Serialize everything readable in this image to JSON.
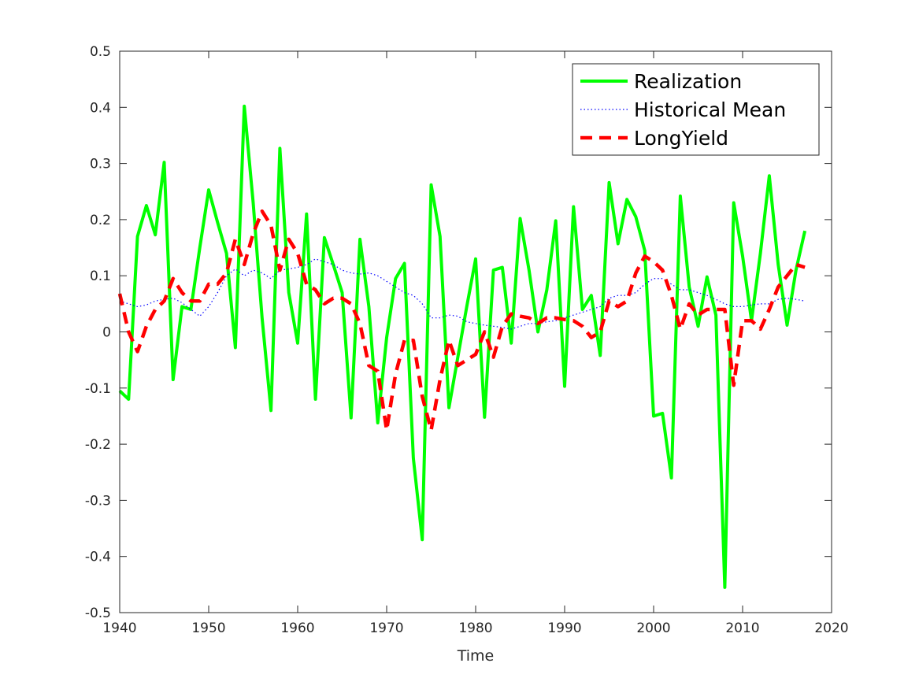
{
  "chart_data": {
    "type": "line",
    "title": "",
    "xlabel": "Time",
    "ylabel": "",
    "xlim": [
      1940,
      2020
    ],
    "ylim": [
      -0.5,
      0.5
    ],
    "xticks": [
      1940,
      1950,
      1960,
      1970,
      1980,
      1990,
      2000,
      2010,
      2020
    ],
    "yticks": [
      -0.5,
      -0.4,
      -0.3,
      -0.2,
      -0.1,
      0,
      0.1,
      0.2,
      0.3,
      0.4,
      0.5
    ],
    "xtick_labels": [
      "1940",
      "1950",
      "1960",
      "1970",
      "1980",
      "1990",
      "2000",
      "2010",
      "2020"
    ],
    "ytick_labels": [
      "-0.5",
      "-0.4",
      "-0.3",
      "-0.2",
      "-0.1",
      "0",
      "0.1",
      "0.2",
      "0.3",
      "0.4",
      "0.5"
    ],
    "legend_position": "top-right",
    "series": [
      {
        "name": "Realization",
        "color": "#00ff00",
        "style": "solid",
        "x": [
          1940,
          1941,
          1942,
          1943,
          1944,
          1945,
          1946,
          1947,
          1948,
          1949,
          1950,
          1951,
          1952,
          1953,
          1954,
          1955,
          1956,
          1957,
          1958,
          1959,
          1960,
          1961,
          1962,
          1963,
          1964,
          1965,
          1966,
          1967,
          1968,
          1969,
          1970,
          1971,
          1972,
          1973,
          1974,
          1975,
          1976,
          1977,
          1978,
          1979,
          1980,
          1981,
          1982,
          1983,
          1984,
          1985,
          1986,
          1987,
          1988,
          1989,
          1990,
          1991,
          1992,
          1993,
          1994,
          1995,
          1996,
          1997,
          1998,
          1999,
          2000,
          2001,
          2002,
          2003,
          2004,
          2005,
          2006,
          2007,
          2008,
          2009,
          2010,
          2011,
          2012,
          2013,
          2014,
          2015,
          2016,
          2017
        ],
        "values": [
          -0.105,
          -0.12,
          0.17,
          0.225,
          0.173,
          0.302,
          -0.085,
          0.045,
          0.04,
          0.15,
          0.253,
          0.195,
          0.14,
          -0.028,
          0.402,
          0.23,
          0.025,
          -0.14,
          0.327,
          0.07,
          -0.02,
          0.21,
          -0.12,
          0.168,
          0.12,
          0.07,
          -0.153,
          0.165,
          0.045,
          -0.162,
          -0.01,
          0.095,
          0.122,
          -0.225,
          -0.37,
          0.262,
          0.17,
          -0.135,
          -0.045,
          0.045,
          0.13,
          -0.152,
          0.11,
          0.115,
          -0.02,
          0.202,
          0.11,
          0.0,
          0.075,
          0.198,
          -0.097,
          0.223,
          0.04,
          0.065,
          -0.042,
          0.266,
          0.157,
          0.236,
          0.205,
          0.145,
          -0.15,
          -0.145,
          -0.26,
          0.242,
          0.08,
          0.01,
          0.098,
          0.03,
          -0.455,
          0.23,
          0.135,
          0.02,
          0.14,
          0.278,
          0.12,
          0.012,
          0.11,
          0.18
        ]
      },
      {
        "name": "Historical Mean",
        "color": "#0000ff",
        "style": "dotted",
        "x": [
          1940,
          1941,
          1942,
          1943,
          1944,
          1945,
          1946,
          1947,
          1948,
          1949,
          1950,
          1951,
          1952,
          1953,
          1954,
          1955,
          1956,
          1957,
          1958,
          1959,
          1960,
          1961,
          1962,
          1963,
          1964,
          1965,
          1966,
          1967,
          1968,
          1969,
          1970,
          1971,
          1972,
          1973,
          1974,
          1975,
          1976,
          1977,
          1978,
          1979,
          1980,
          1981,
          1982,
          1983,
          1984,
          1985,
          1986,
          1987,
          1988,
          1989,
          1990,
          1991,
          1992,
          1993,
          1994,
          1995,
          1996,
          1997,
          1998,
          1999,
          2000,
          2001,
          2002,
          2003,
          2004,
          2005,
          2006,
          2007,
          2008,
          2009,
          2010,
          2011,
          2012,
          2013,
          2014,
          2015,
          2016,
          2017
        ],
        "values": [
          0.055,
          0.05,
          0.045,
          0.048,
          0.055,
          0.058,
          0.06,
          0.052,
          0.04,
          0.028,
          0.045,
          0.07,
          0.1,
          0.112,
          0.1,
          0.11,
          0.105,
          0.095,
          0.11,
          0.112,
          0.115,
          0.12,
          0.13,
          0.125,
          0.12,
          0.11,
          0.105,
          0.103,
          0.105,
          0.1,
          0.09,
          0.08,
          0.07,
          0.065,
          0.05,
          0.025,
          0.025,
          0.03,
          0.028,
          0.018,
          0.015,
          0.012,
          0.01,
          0.008,
          0.005,
          0.01,
          0.015,
          0.015,
          0.018,
          0.02,
          0.025,
          0.03,
          0.035,
          0.04,
          0.045,
          0.06,
          0.065,
          0.065,
          0.07,
          0.085,
          0.095,
          0.095,
          0.085,
          0.075,
          0.075,
          0.07,
          0.065,
          0.058,
          0.05,
          0.045,
          0.045,
          0.048,
          0.05,
          0.05,
          0.058,
          0.06,
          0.058,
          0.055
        ]
      },
      {
        "name": "LongYield",
        "color": "#ff0000",
        "style": "dashed",
        "x": [
          1940,
          1941,
          1942,
          1943,
          1944,
          1945,
          1946,
          1947,
          1948,
          1949,
          1950,
          1951,
          1952,
          1953,
          1954,
          1955,
          1956,
          1957,
          1958,
          1959,
          1960,
          1961,
          1962,
          1963,
          1964,
          1965,
          1966,
          1967,
          1968,
          1969,
          1970,
          1971,
          1972,
          1973,
          1974,
          1975,
          1976,
          1977,
          1978,
          1979,
          1980,
          1981,
          1982,
          1983,
          1984,
          1985,
          1986,
          1987,
          1988,
          1989,
          1990,
          1991,
          1992,
          1993,
          1994,
          1995,
          1996,
          1997,
          1998,
          1999,
          2000,
          2001,
          2002,
          2003,
          2004,
          2005,
          2006,
          2007,
          2008,
          2009,
          2010,
          2011,
          2012,
          2013,
          2014,
          2015,
          2016,
          2017
        ],
        "values": [
          0.068,
          0.0,
          -0.035,
          0.01,
          0.04,
          0.055,
          0.095,
          0.07,
          0.055,
          0.055,
          0.085,
          0.085,
          0.105,
          0.165,
          0.12,
          0.175,
          0.215,
          0.19,
          0.11,
          0.165,
          0.14,
          0.085,
          0.075,
          0.05,
          0.06,
          0.06,
          0.05,
          0.015,
          -0.06,
          -0.07,
          -0.175,
          -0.075,
          -0.015,
          -0.015,
          -0.115,
          -0.175,
          -0.085,
          -0.015,
          -0.06,
          -0.05,
          -0.04,
          0.0,
          -0.045,
          0.01,
          0.032,
          0.028,
          0.025,
          0.015,
          0.025,
          0.025,
          0.022,
          0.02,
          0.01,
          -0.01,
          0.0,
          0.055,
          0.045,
          0.055,
          0.105,
          0.135,
          0.125,
          0.11,
          0.065,
          0.005,
          0.05,
          0.03,
          0.04,
          0.04,
          0.04,
          -0.095,
          0.02,
          0.02,
          0.005,
          0.04,
          0.08,
          0.1,
          0.12,
          0.115
        ]
      }
    ]
  }
}
